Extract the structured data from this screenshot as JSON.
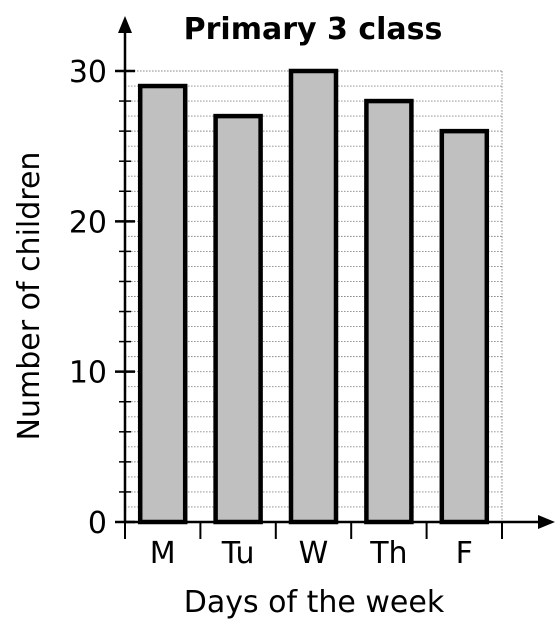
{
  "chart_data": {
    "type": "bar",
    "title": "Primary 3 class",
    "xlabel": "Days of the week",
    "ylabel": "Number of children",
    "categories": [
      "M",
      "Tu",
      "W",
      "Th",
      "F"
    ],
    "values": [
      29,
      27,
      30,
      28,
      26
    ],
    "ylim": [
      0,
      30
    ],
    "yticks": [
      "0",
      "10",
      "20",
      "30"
    ],
    "grid": true,
    "bar_color": "#c0c0c0",
    "bar_outline_color": "#000000"
  }
}
